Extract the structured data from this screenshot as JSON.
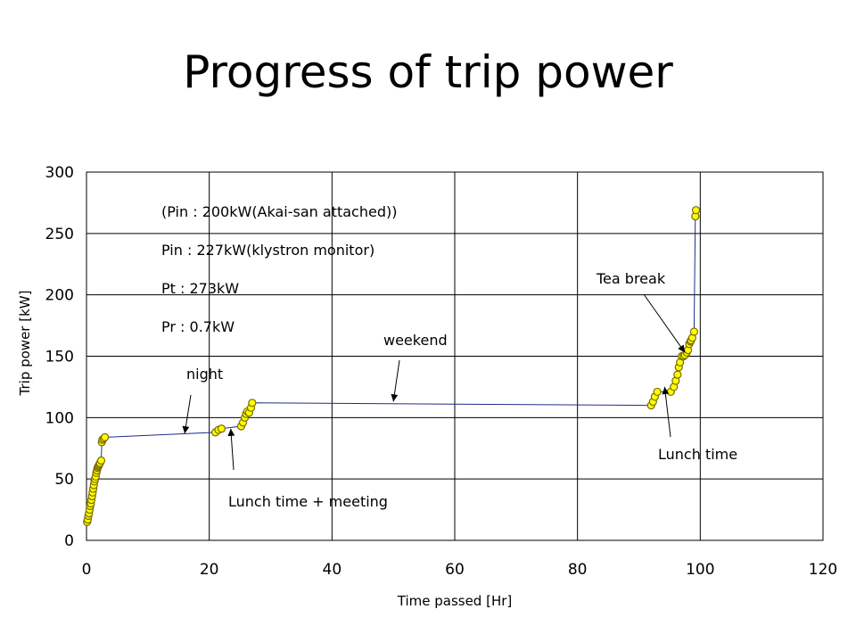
{
  "slide": {
    "title": "Progress of trip power"
  },
  "chart_data": {
    "type": "scatter",
    "title": "",
    "xlabel": "Time passed [Hr]",
    "ylabel": "Trip power [kW]",
    "xlim": [
      0,
      120
    ],
    "ylim": [
      0,
      300
    ],
    "xticks": [
      0,
      20,
      40,
      60,
      80,
      100,
      120
    ],
    "yticks": [
      0,
      50,
      100,
      150,
      200,
      250,
      300
    ],
    "grid": true,
    "line_color": "#1f2d8a",
    "marker_color": "#ffff00",
    "marker_edge": "#7a6a00",
    "series": [
      {
        "x": [
          0.1,
          0.2,
          0.3,
          0.4,
          0.5,
          0.6,
          0.7,
          0.8,
          0.9,
          1.0,
          1.1,
          1.2,
          1.3,
          1.4,
          1.5,
          1.6,
          1.7,
          1.8,
          1.9,
          2.0,
          2.1,
          2.2,
          2.4,
          2.5,
          2.6,
          2.8,
          3.0,
          21.0,
          21.5,
          22.0,
          25.2,
          25.5,
          25.8,
          26.0,
          26.2,
          26.5,
          26.8,
          27.0,
          92.0,
          92.3,
          92.6,
          93.0,
          95.2,
          95.7,
          96.0,
          96.3,
          96.5,
          96.7,
          97.0,
          97.3,
          97.5,
          97.8,
          98.0,
          98.2,
          98.4,
          98.5,
          98.7,
          99.0,
          99.2,
          99.3
        ],
        "y": [
          15,
          17,
          20,
          22,
          25,
          28,
          30,
          33,
          36,
          39,
          42,
          45,
          48,
          50,
          52,
          55,
          57,
          59,
          60,
          61,
          62,
          63,
          65,
          80,
          82,
          83,
          84,
          88,
          90,
          91,
          93,
          96,
          100,
          103,
          105,
          104,
          108,
          112,
          110,
          113,
          117,
          121,
          121,
          125,
          130,
          135,
          141,
          145,
          150,
          150,
          151,
          153,
          155,
          160,
          162,
          163,
          165,
          170,
          264,
          269
        ]
      }
    ],
    "notes": [
      "(Pin : 200kW(Akai-san attached))",
      "Pin : 227kW(klystron monitor)",
      "Pt : 273kW",
      "Pr : 0.7kW"
    ],
    "annotations": [
      {
        "text": "night",
        "target_x": 16,
        "target_y": 87
      },
      {
        "text": "Lunch time + meeting",
        "target_x": 23.5,
        "target_y": 91
      },
      {
        "text": "weekend",
        "target_x": 50,
        "target_y": 113
      },
      {
        "text": "Tea break",
        "target_x": 97.5,
        "target_y": 153
      },
      {
        "text": "Lunch time",
        "target_x": 94.2,
        "target_y": 125
      }
    ]
  }
}
